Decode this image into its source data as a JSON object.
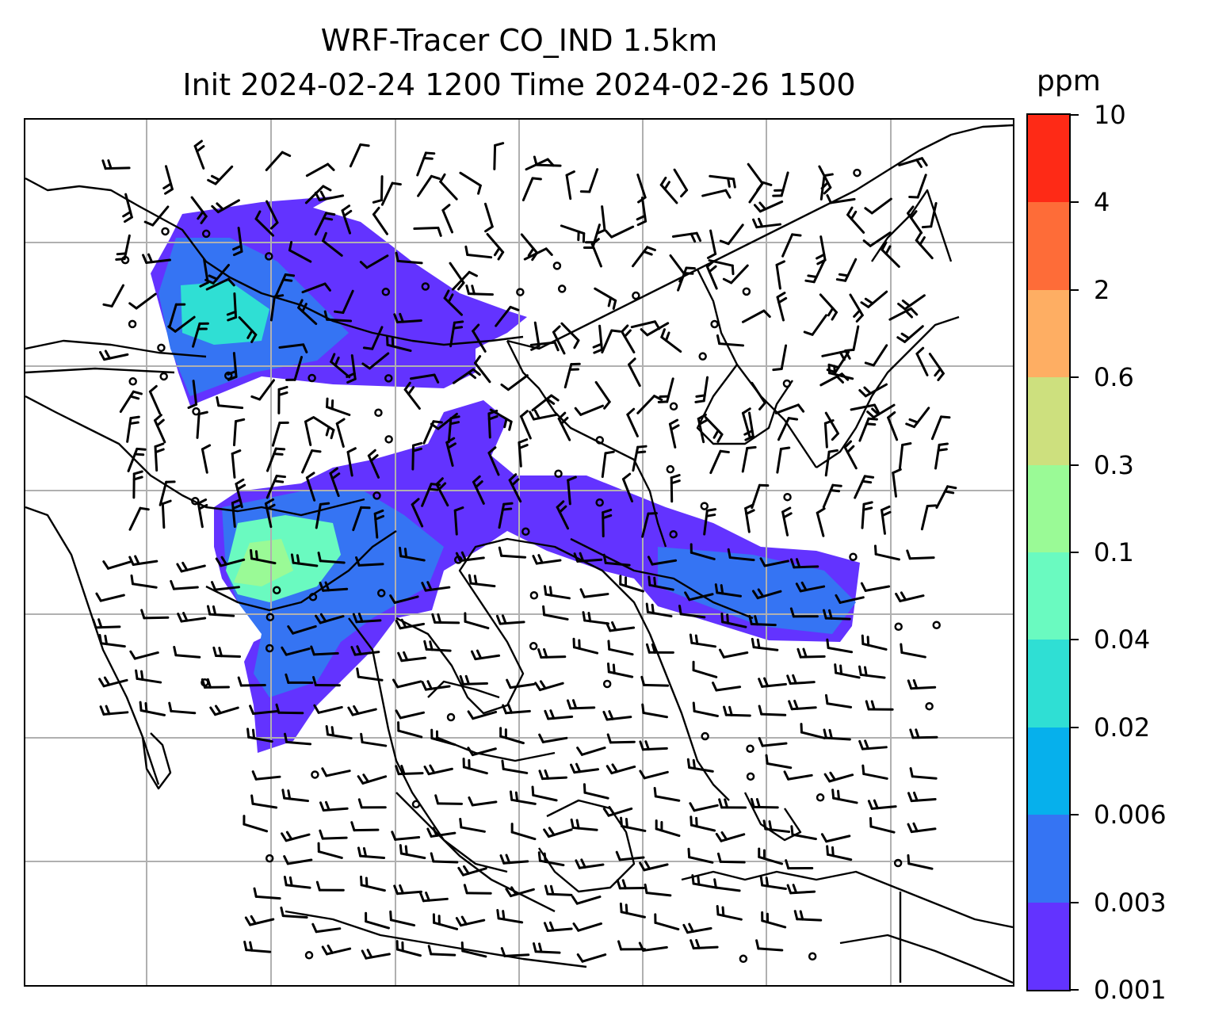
{
  "title": {
    "line1": "WRF-Tracer CO_IND 1.5km",
    "line2": "Init 2024-02-24 1200 Time 2024-02-26 1500"
  },
  "colorbar": {
    "unit": "ppm",
    "levels": [
      "0.001",
      "0.003",
      "0.006",
      "0.02",
      "0.04",
      "0.1",
      "0.3",
      "0.6",
      "2",
      "4",
      "10"
    ],
    "colors": [
      "#6333ff",
      "#3574f3",
      "#06b0ec",
      "#2fdfd4",
      "#6afac0",
      "#9afa96",
      "#cde07e",
      "#feae63",
      "#fe6c38",
      "#fe2a16"
    ]
  },
  "map": {
    "grid_lines": "on",
    "grid_color": "#b0b0b0",
    "coastline_color": "#000000",
    "wind_barb_color": "#000000"
  }
}
